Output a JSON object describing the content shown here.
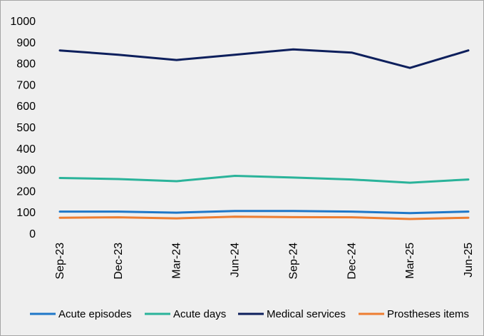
{
  "chart_data": {
    "type": "line",
    "title": "",
    "xlabel": "",
    "ylabel": "",
    "ylim": [
      0,
      1000
    ],
    "yticks": [
      "0",
      "100",
      "200",
      "300",
      "400",
      "500",
      "600",
      "700",
      "800",
      "900",
      "1000"
    ],
    "categories": [
      "Sep-23",
      "Dec-23",
      "Mar-24",
      "Jun-24",
      "Sep-24",
      "Dec-24",
      "Mar-25",
      "Jun-25"
    ],
    "grid": false,
    "legend_position": "bottom",
    "series": [
      {
        "name": "Acute episodes",
        "color": "#1f77c8",
        "values": [
          102,
          102,
          97,
          105,
          105,
          102,
          95,
          102
        ]
      },
      {
        "name": "Acute days",
        "color": "#2ab39a",
        "values": [
          260,
          255,
          245,
          270,
          262,
          253,
          238,
          253
        ]
      },
      {
        "name": "Medical services",
        "color": "#0d1f5c",
        "values": [
          860,
          840,
          815,
          840,
          865,
          850,
          778,
          860
        ]
      },
      {
        "name": "Prostheses items",
        "color": "#ee7d31",
        "values": [
          73,
          75,
          70,
          78,
          76,
          75,
          67,
          73
        ]
      }
    ]
  }
}
